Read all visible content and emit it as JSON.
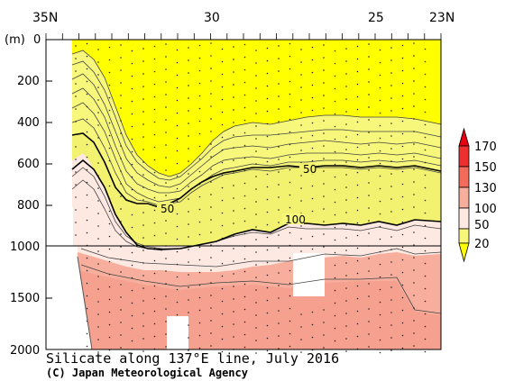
{
  "chart_data": {
    "type": "contour-section",
    "title": "Silicate along 137°E line, July 2016",
    "credit": "(C) Japan Meteorological Agency",
    "x_axis": {
      "range": [
        "35N",
        "23N"
      ],
      "ticks": [
        "35N",
        "30",
        "25",
        "23N"
      ]
    },
    "y_axis": {
      "unit_label": "(m)",
      "ticks": [
        "0",
        "200",
        "400",
        "600",
        "800",
        "1000",
        "1500",
        "2000"
      ],
      "break_at": 1000
    },
    "colorbar": {
      "levels": [
        "20",
        "50",
        "100",
        "130",
        "150",
        "170"
      ],
      "colors": [
        "#ffff00",
        "#f7f77c",
        "#fde8e2",
        "#f8ae9d",
        "#f36b5b",
        "#ee2f2f",
        "#e60012"
      ]
    },
    "contour_labels": [
      "50",
      "50",
      "100"
    ],
    "fill_colors": {
      "yellow": "#ffff00",
      "light_yellow": "#f7f77c",
      "pale_pink": "#fde8e2",
      "salmon": "#f8ae9d",
      "salmon_deep": "#f6a08f"
    }
  }
}
